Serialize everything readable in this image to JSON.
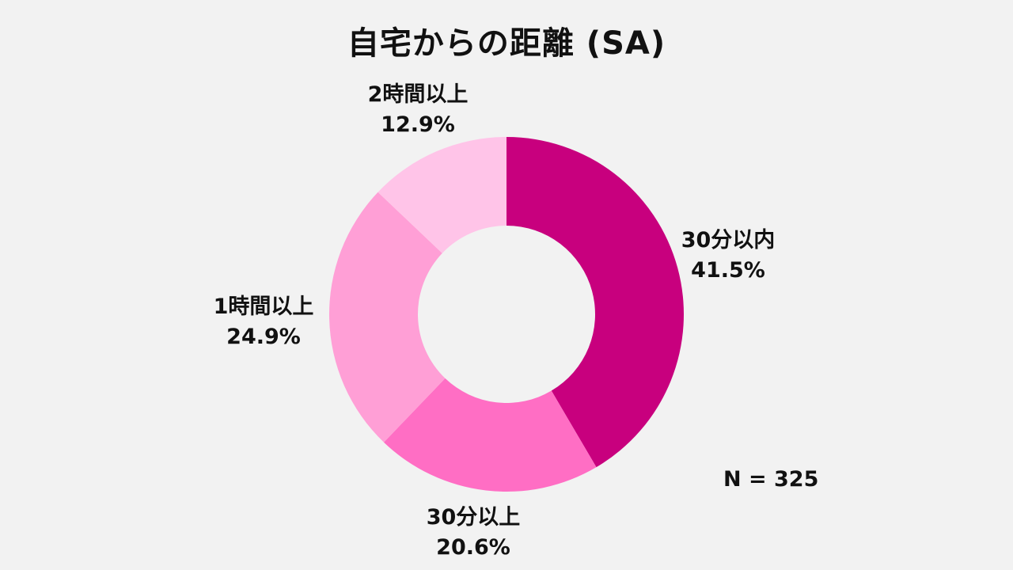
{
  "chart_data": {
    "type": "pie",
    "title": "自宅からの距離 (SA)",
    "note": "N = 325",
    "donut": true,
    "categories": [
      "30分以内",
      "30分以上",
      "1時間以上",
      "2時間以上"
    ],
    "values": [
      41.5,
      20.6,
      24.9,
      12.9
    ],
    "value_labels": [
      "41.5%",
      "20.6%",
      "24.9%",
      "12.9%"
    ],
    "colors": [
      "#c8007e",
      "#ff6ec4",
      "#ff9fd6",
      "#ffc4e8"
    ],
    "start_angle_deg": 0,
    "direction": "clockwise"
  }
}
